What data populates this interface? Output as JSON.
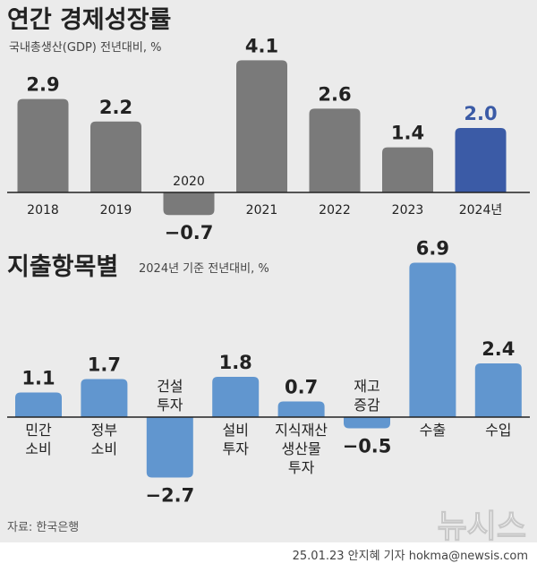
{
  "colors": {
    "background": "#ebebeb",
    "gray_bar": "#7a7a7a",
    "highlight_bar": "#3b5ba6",
    "blue_bar": "#6196cf",
    "axis": "#222222",
    "text": "#222222",
    "subtext": "#444444"
  },
  "chart_data": [
    {
      "type": "bar",
      "title": "연간 경제성장률",
      "subtitle": "국내총생산(GDP) 전년대비, %",
      "categories": [
        "2018",
        "2019",
        "2020",
        "2021",
        "2022",
        "2023",
        "2024년"
      ],
      "values": [
        2.9,
        2.2,
        -0.7,
        4.1,
        2.6,
        1.4,
        2.0
      ],
      "value_labels": [
        "2.9",
        "2.2",
        "−0.7",
        "4.1",
        "2.6",
        "1.4",
        "2.0"
      ],
      "highlight_index": 6,
      "xlabel": "",
      "ylabel": "",
      "grid": false
    },
    {
      "type": "bar",
      "title": "지출항목별",
      "subtitle": "2024년 기준 전년대비, %",
      "categories": [
        [
          "민간",
          "소비"
        ],
        [
          "정부",
          "소비"
        ],
        [
          "건설",
          "투자"
        ],
        [
          "설비",
          "투자"
        ],
        [
          "지식재산",
          "생산물",
          "투자"
        ],
        [
          "재고",
          "증감"
        ],
        [
          "수출"
        ],
        [
          "수입"
        ]
      ],
      "values": [
        1.1,
        1.7,
        -2.7,
        1.8,
        0.7,
        -0.5,
        6.9,
        2.4
      ],
      "value_labels": [
        "1.1",
        "1.7",
        "−2.7",
        "1.8",
        "0.7",
        "−0.5",
        "6.9",
        "2.4"
      ],
      "xlabel": "",
      "ylabel": "",
      "grid": false
    }
  ],
  "source": "자료: 한국은행",
  "watermark": "뉴시스",
  "credit": "25.01.23 안지혜 기자 hokma@newsis.com"
}
